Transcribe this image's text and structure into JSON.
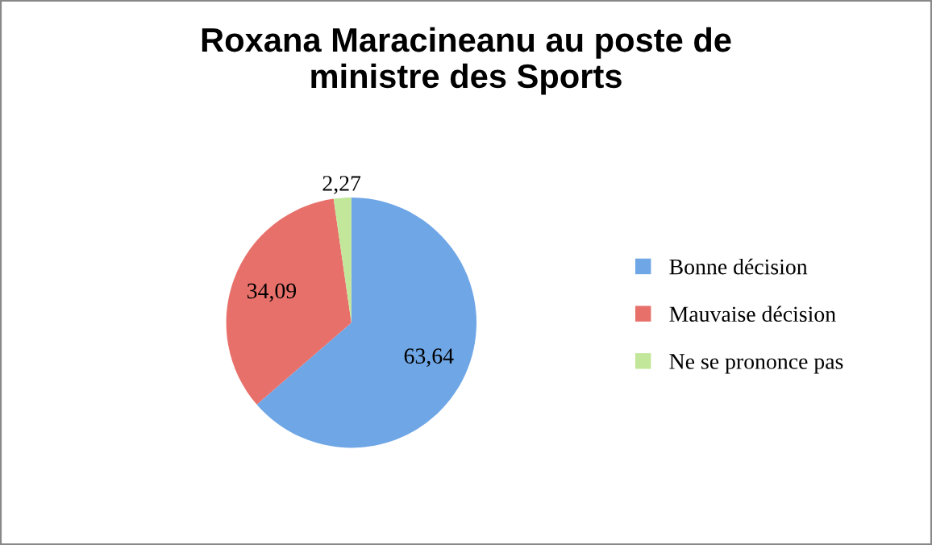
{
  "chart_data": {
    "type": "pie",
    "title": "Roxana Maracineanu au poste de\nministre des Sports",
    "categories": [
      "Bonne décision",
      "Mauvaise décision",
      "Ne se prononce pas"
    ],
    "values": [
      63.64,
      34.09,
      2.27
    ],
    "value_labels": [
      "63,64",
      "34,09",
      "2,27"
    ],
    "colors": [
      "#6fa6e6",
      "#e8706a",
      "#c2e79a"
    ],
    "legend": "right"
  }
}
